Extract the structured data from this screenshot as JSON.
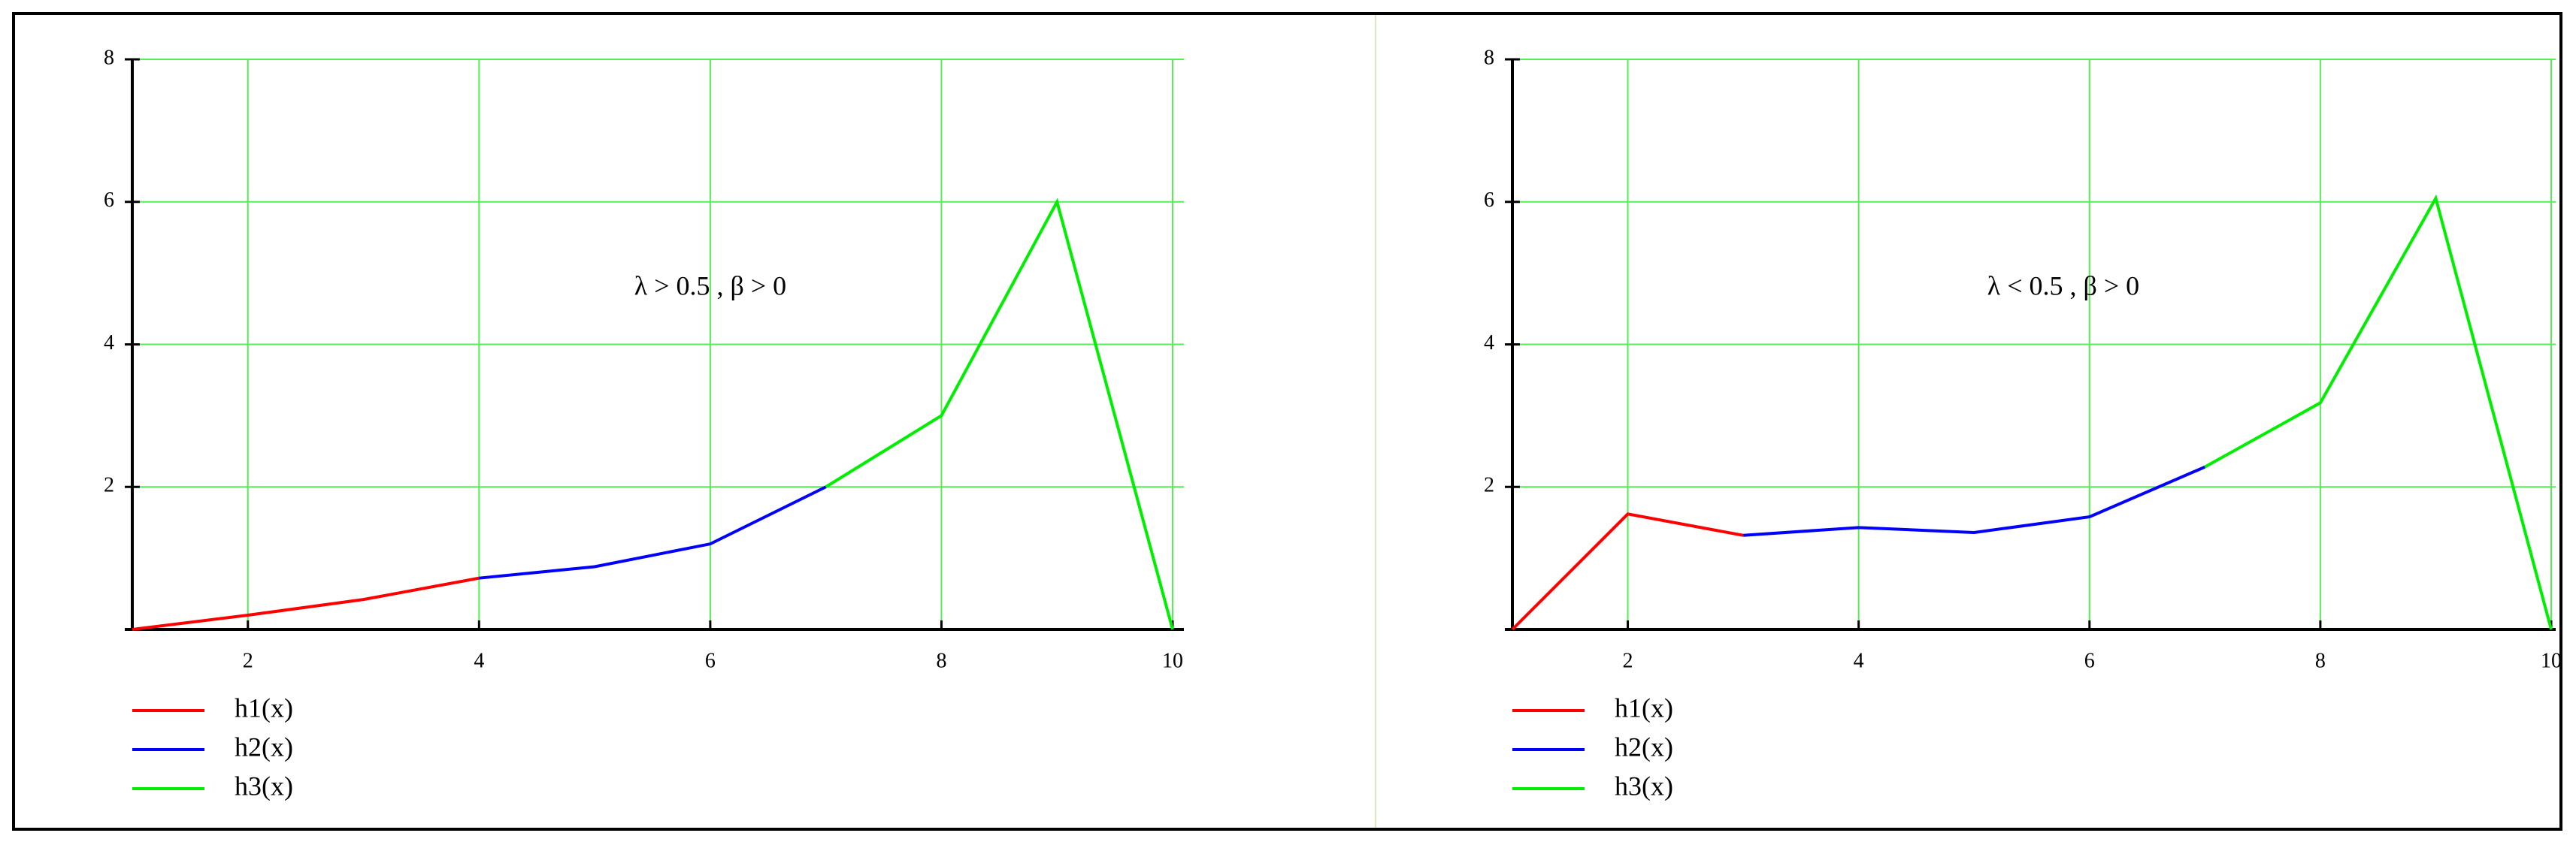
{
  "chart_data": [
    {
      "type": "line",
      "annotation": "λ > 0.5 , β > 0",
      "xlim": [
        1,
        10
      ],
      "ylim": [
        0,
        8
      ],
      "xticks": [
        2,
        4,
        6,
        8,
        10
      ],
      "yticks": [
        2,
        4,
        6,
        8
      ],
      "grid": true,
      "series": [
        {
          "name": "h1(x)",
          "color": "#ff0000",
          "x": [
            1,
            2,
            3,
            4
          ],
          "values": [
            0,
            0.2,
            0.42,
            0.72
          ]
        },
        {
          "name": "h2(x)",
          "color": "#0000ff",
          "x": [
            4,
            5,
            6,
            7
          ],
          "values": [
            0.72,
            0.88,
            1.2,
            2.0
          ]
        },
        {
          "name": "h3(x)",
          "color": "#00ee00",
          "x": [
            7,
            8,
            9,
            10
          ],
          "values": [
            2.0,
            3.0,
            6.0,
            0
          ]
        }
      ]
    },
    {
      "type": "line",
      "annotation": "λ < 0.5 , β > 0",
      "xlim": [
        1,
        10
      ],
      "ylim": [
        0,
        8
      ],
      "xticks": [
        2,
        4,
        6,
        8,
        10
      ],
      "yticks": [
        2,
        4,
        6,
        8
      ],
      "grid": true,
      "series": [
        {
          "name": "h1(x)",
          "color": "#ff0000",
          "x": [
            1,
            2,
            3
          ],
          "values": [
            0,
            1.62,
            1.32
          ]
        },
        {
          "name": "h2(x)",
          "color": "#0000ff",
          "x": [
            3,
            4,
            5,
            6,
            7
          ],
          "values": [
            1.32,
            1.43,
            1.36,
            1.58,
            2.28
          ]
        },
        {
          "name": "h3(x)",
          "color": "#00ee00",
          "x": [
            7,
            8,
            9,
            10
          ],
          "values": [
            2.28,
            3.18,
            6.05,
            0
          ]
        }
      ]
    }
  ]
}
